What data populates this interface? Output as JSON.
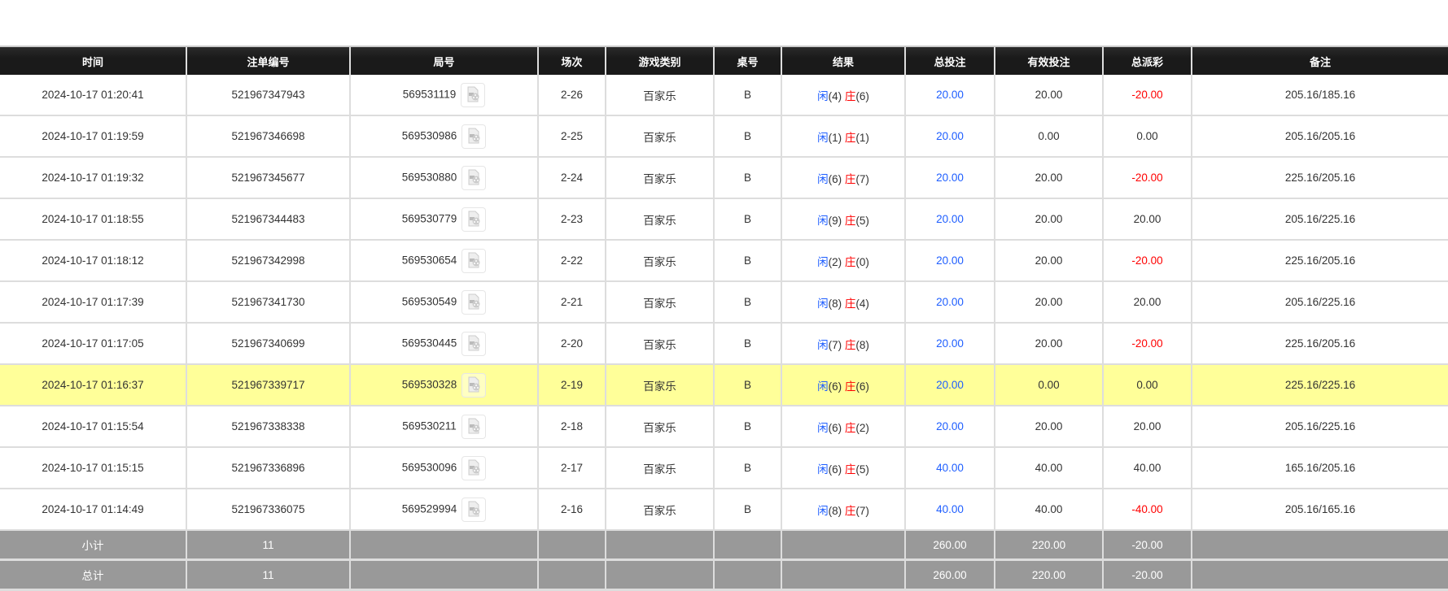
{
  "headers": [
    "时间",
    "注单编号",
    "局号",
    "场次",
    "游戏类别",
    "桌号",
    "结果",
    "总投注",
    "有效投注",
    "总派彩",
    "备注"
  ],
  "result_labels": {
    "player": "闲",
    "banker": "庄"
  },
  "rows": [
    {
      "time": "2024-10-17 01:20:41",
      "bet_id": "521967347943",
      "round": "569531119",
      "shoe": "2-26",
      "game": "百家乐",
      "table": "B",
      "player": "(4)",
      "banker": "(6)",
      "total": "20.00",
      "valid": "20.00",
      "payout": "-20.00",
      "note": "205.16/185.16",
      "highlight": false
    },
    {
      "time": "2024-10-17 01:19:59",
      "bet_id": "521967346698",
      "round": "569530986",
      "shoe": "2-25",
      "game": "百家乐",
      "table": "B",
      "player": "(1)",
      "banker": "(1)",
      "total": "20.00",
      "valid": "0.00",
      "payout": "0.00",
      "note": "205.16/205.16",
      "highlight": false
    },
    {
      "time": "2024-10-17 01:19:32",
      "bet_id": "521967345677",
      "round": "569530880",
      "shoe": "2-24",
      "game": "百家乐",
      "table": "B",
      "player": "(6)",
      "banker": "(7)",
      "total": "20.00",
      "valid": "20.00",
      "payout": "-20.00",
      "note": "225.16/205.16",
      "highlight": false
    },
    {
      "time": "2024-10-17 01:18:55",
      "bet_id": "521967344483",
      "round": "569530779",
      "shoe": "2-23",
      "game": "百家乐",
      "table": "B",
      "player": "(9)",
      "banker": "(5)",
      "total": "20.00",
      "valid": "20.00",
      "payout": "20.00",
      "note": "205.16/225.16",
      "highlight": false
    },
    {
      "time": "2024-10-17 01:18:12",
      "bet_id": "521967342998",
      "round": "569530654",
      "shoe": "2-22",
      "game": "百家乐",
      "table": "B",
      "player": "(2)",
      "banker": "(0)",
      "total": "20.00",
      "valid": "20.00",
      "payout": "-20.00",
      "note": "225.16/205.16",
      "highlight": false
    },
    {
      "time": "2024-10-17 01:17:39",
      "bet_id": "521967341730",
      "round": "569530549",
      "shoe": "2-21",
      "game": "百家乐",
      "table": "B",
      "player": "(8)",
      "banker": "(4)",
      "total": "20.00",
      "valid": "20.00",
      "payout": "20.00",
      "note": "205.16/225.16",
      "highlight": false
    },
    {
      "time": "2024-10-17 01:17:05",
      "bet_id": "521967340699",
      "round": "569530445",
      "shoe": "2-20",
      "game": "百家乐",
      "table": "B",
      "player": "(7)",
      "banker": "(8)",
      "total": "20.00",
      "valid": "20.00",
      "payout": "-20.00",
      "note": "225.16/205.16",
      "highlight": false
    },
    {
      "time": "2024-10-17 01:16:37",
      "bet_id": "521967339717",
      "round": "569530328",
      "shoe": "2-19",
      "game": "百家乐",
      "table": "B",
      "player": "(6)",
      "banker": "(6)",
      "total": "20.00",
      "valid": "0.00",
      "payout": "0.00",
      "note": "225.16/225.16",
      "highlight": true
    },
    {
      "time": "2024-10-17 01:15:54",
      "bet_id": "521967338338",
      "round": "569530211",
      "shoe": "2-18",
      "game": "百家乐",
      "table": "B",
      "player": "(6)",
      "banker": "(2)",
      "total": "20.00",
      "valid": "20.00",
      "payout": "20.00",
      "note": "205.16/225.16",
      "highlight": false
    },
    {
      "time": "2024-10-17 01:15:15",
      "bet_id": "521967336896",
      "round": "569530096",
      "shoe": "2-17",
      "game": "百家乐",
      "table": "B",
      "player": "(6)",
      "banker": "(5)",
      "total": "40.00",
      "valid": "40.00",
      "payout": "40.00",
      "note": "165.16/205.16",
      "highlight": false
    },
    {
      "time": "2024-10-17 01:14:49",
      "bet_id": "521967336075",
      "round": "569529994",
      "shoe": "2-16",
      "game": "百家乐",
      "table": "B",
      "player": "(8)",
      "banker": "(7)",
      "total": "40.00",
      "valid": "40.00",
      "payout": "-40.00",
      "note": "205.16/165.16",
      "highlight": false
    }
  ],
  "footers": [
    {
      "label": "小计",
      "count": "11",
      "total": "260.00",
      "valid": "220.00",
      "payout": "-20.00"
    },
    {
      "label": "总计",
      "count": "11",
      "total": "260.00",
      "valid": "220.00",
      "payout": "-20.00"
    }
  ],
  "colors": {
    "header_bg": "#1c1c1c",
    "highlight": "#ffff99",
    "footer_bg": "#999999",
    "blue": "#1e5eff",
    "red": "#ff0000"
  }
}
